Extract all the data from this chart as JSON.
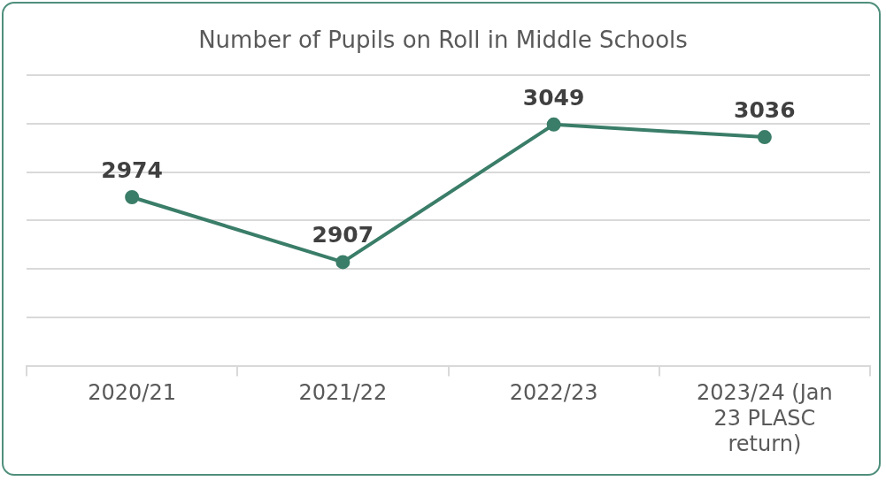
{
  "chart_data": {
    "type": "line",
    "title": "Number of Pupils on Roll in Middle Schools",
    "categories": [
      "2020/21",
      "2021/22",
      "2022/23",
      "2023/24 (Jan 23 PLASC return)"
    ],
    "series": [
      {
        "color": "#3a7d68",
        "values": [
          2974,
          2907,
          3049,
          3036
        ]
      }
    ],
    "ylim": [
      2800,
      3100
    ],
    "yticks": [
      {
        "value": 2800,
        "label": null
      },
      {
        "value": 2850,
        "label": null
      },
      {
        "value": 2900,
        "label": null
      },
      {
        "value": 2950,
        "label": null
      },
      {
        "value": 3000,
        "label": null
      },
      {
        "value": 3050,
        "label": null
      },
      {
        "value": 3100,
        "label": null
      }
    ],
    "tick_labels": "x",
    "grid": "y",
    "legend": false,
    "marker": "circle",
    "line_style": "solid",
    "data_labels": true
  }
}
